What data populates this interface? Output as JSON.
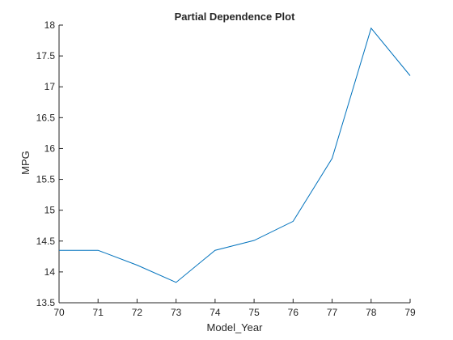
{
  "chart_data": {
    "type": "line",
    "title": "Partial Dependence Plot",
    "xlabel": "Model_Year",
    "ylabel": "MPG",
    "xlim": [
      70,
      79
    ],
    "ylim": [
      13.5,
      18
    ],
    "xticks": [
      70,
      71,
      72,
      73,
      74,
      75,
      76,
      77,
      78,
      79
    ],
    "yticks": [
      13.5,
      14,
      14.5,
      15,
      15.5,
      16,
      16.5,
      17,
      17.5,
      18
    ],
    "xtick_labels": [
      "70",
      "71",
      "72",
      "73",
      "74",
      "75",
      "76",
      "77",
      "78",
      "79"
    ],
    "ytick_labels": [
      "13.5",
      "14",
      "14.5",
      "15",
      "15.5",
      "16",
      "16.5",
      "17",
      "17.5",
      "18"
    ],
    "grid": false,
    "series": [
      {
        "color": "#0072bd",
        "x": [
          70,
          71,
          72,
          73,
          74,
          75,
          76,
          77,
          78,
          79
        ],
        "y": [
          14.35,
          14.35,
          14.11,
          13.83,
          14.35,
          14.51,
          14.82,
          15.84,
          17.95,
          17.18
        ]
      }
    ]
  }
}
